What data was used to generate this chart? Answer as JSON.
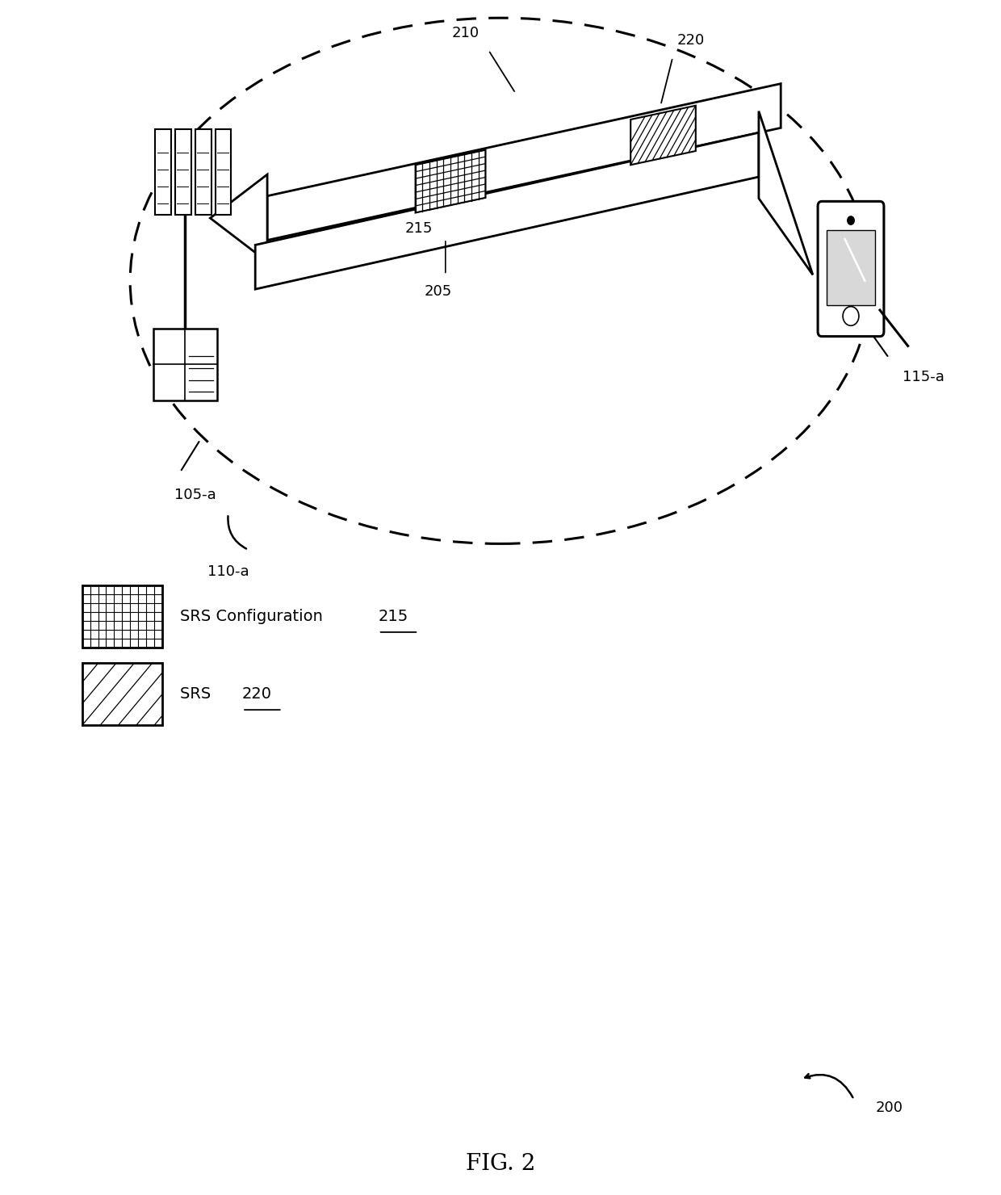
{
  "bg_color": "#ffffff",
  "fig_label": "FIG. 2",
  "fig_number": "200",
  "label_105a": "105-a",
  "label_115a": "115-a",
  "label_110a": "110-a",
  "label_210": "210",
  "label_220": "220",
  "label_215": "215",
  "label_205": "205",
  "legend_srs_config": "SRS Configuration ",
  "legend_srs_config_num": "215",
  "legend_srs": "SRS ",
  "legend_srs_num": "220"
}
